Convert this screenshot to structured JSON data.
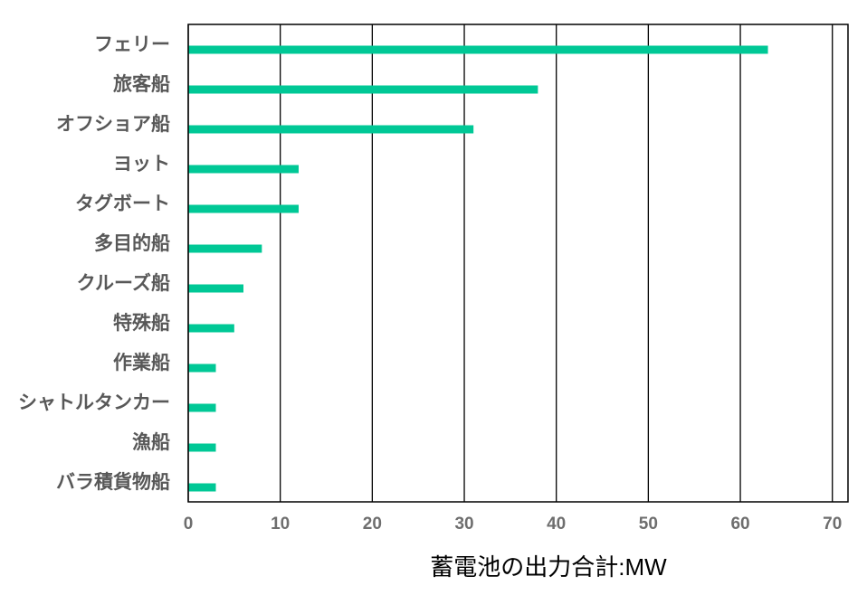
{
  "chart_data": {
    "type": "bar",
    "orientation": "horizontal",
    "title": "",
    "xlabel": "蓄電池の出力合計:MW",
    "ylabel": "",
    "categories": [
      "フェリー",
      "旅客船",
      "オフショア船",
      "ヨット",
      "タグボート",
      "多目的船",
      "クルーズ船",
      "特殊船",
      "作業船",
      "シャトルタンカー",
      "漁船",
      "バラ積貨物船"
    ],
    "values": [
      63,
      38,
      31,
      12,
      12,
      8,
      6,
      5,
      3,
      3,
      3,
      3
    ],
    "xlim": [
      0,
      71.7
    ],
    "xticks": [
      0,
      10,
      20,
      30,
      40,
      50,
      60,
      70
    ],
    "grid": true,
    "legend": "none",
    "bar_color": "#00C896",
    "grid_color": "#000000"
  }
}
